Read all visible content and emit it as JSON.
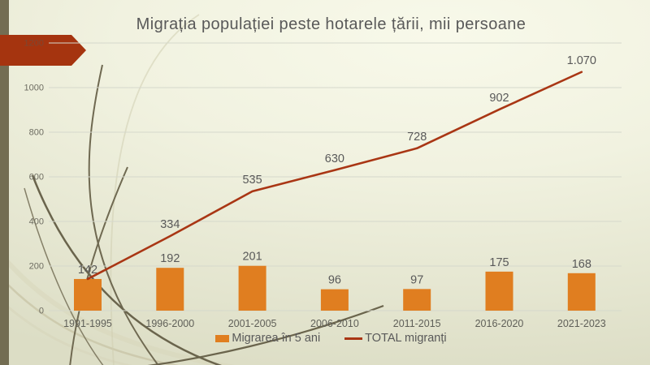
{
  "chart_data": {
    "type": "bar+line",
    "title": "Migrația populației peste hotarele țării, mii persoane",
    "categories": [
      "1991-1995",
      "1996-2000",
      "2001-2005",
      "2006-2010",
      "2011-2015",
      "2016-2020",
      "2021-2023"
    ],
    "series": [
      {
        "name": "Migrarea în 5 ani",
        "type": "bar",
        "color": "#E07E20",
        "values": [
          142,
          192,
          201,
          96,
          97,
          175,
          168
        ],
        "labels": [
          "142",
          "192",
          "201",
          "96",
          "97",
          "175",
          "168"
        ]
      },
      {
        "name": "TOTAL migranți",
        "type": "line",
        "color": "#A93614",
        "values": [
          142,
          334,
          535,
          630,
          728,
          902,
          1070
        ],
        "labels": [
          "",
          "334",
          "535",
          "630",
          "728",
          "902",
          "1.070"
        ]
      }
    ],
    "y_axis": {
      "min": 0,
      "max": 1200,
      "tick_step": 200,
      "ticks": [
        0,
        200,
        400,
        600,
        800,
        1000,
        1200
      ],
      "tick_labels": [
        "0",
        "200",
        "400",
        "600",
        "800",
        "1000",
        "1200"
      ]
    },
    "xlabel": "",
    "ylabel": "",
    "grid": true,
    "legend_position": "bottom"
  },
  "colors": {
    "bar_orange": "#E07E20",
    "line_red": "#A93614",
    "arrow_red": "#A5340F",
    "stripe_olive": "#736D52",
    "data_label_gray": "#595959",
    "axis_text_gray": "#6E6D62",
    "gridline": "#D5D8CC",
    "background_light": "#F8F9EA",
    "background_dark": "#DCDDC5"
  }
}
